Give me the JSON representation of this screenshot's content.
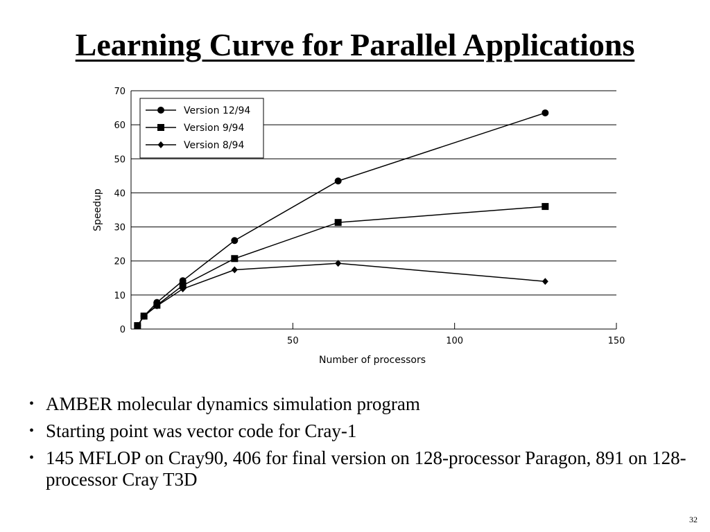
{
  "slide": {
    "title": "Learning Curve for Parallel Applications",
    "bullets": [
      "AMBER molecular dynamics simulation program",
      "Starting point was vector code for Cray-1",
      "145 MFLOP on Cray90, 406 for final version on 128-processor Paragon, 891 on 128-processor Cray T3D"
    ],
    "page_number": "32"
  },
  "chart_data": {
    "type": "line",
    "title": "",
    "xlabel": "Number of processors",
    "ylabel": "Speedup",
    "xlim": [
      0,
      150
    ],
    "ylim": [
      0,
      70
    ],
    "xticks": [
      50,
      100,
      150
    ],
    "yticks": [
      0,
      10,
      20,
      30,
      40,
      50,
      60,
      70
    ],
    "grid": "horizontal",
    "legend_position": "top-left",
    "series": [
      {
        "name": "Version 12/94",
        "marker": "circle",
        "x": [
          2,
          4,
          8,
          16,
          32,
          64,
          128
        ],
        "y": [
          1,
          3.8,
          7.8,
          14.2,
          26,
          43.5,
          63.5
        ]
      },
      {
        "name": "Version 9/94",
        "marker": "square",
        "x": [
          2,
          4,
          8,
          16,
          32,
          64,
          128
        ],
        "y": [
          1,
          3.8,
          7,
          12.8,
          20.7,
          31.3,
          36
        ]
      },
      {
        "name": "Version 8/94",
        "marker": "diamond",
        "x": [
          2,
          4,
          8,
          16,
          32,
          64,
          128
        ],
        "y": [
          1,
          3.8,
          6.8,
          11.8,
          17.4,
          19.3,
          14
        ]
      }
    ]
  }
}
